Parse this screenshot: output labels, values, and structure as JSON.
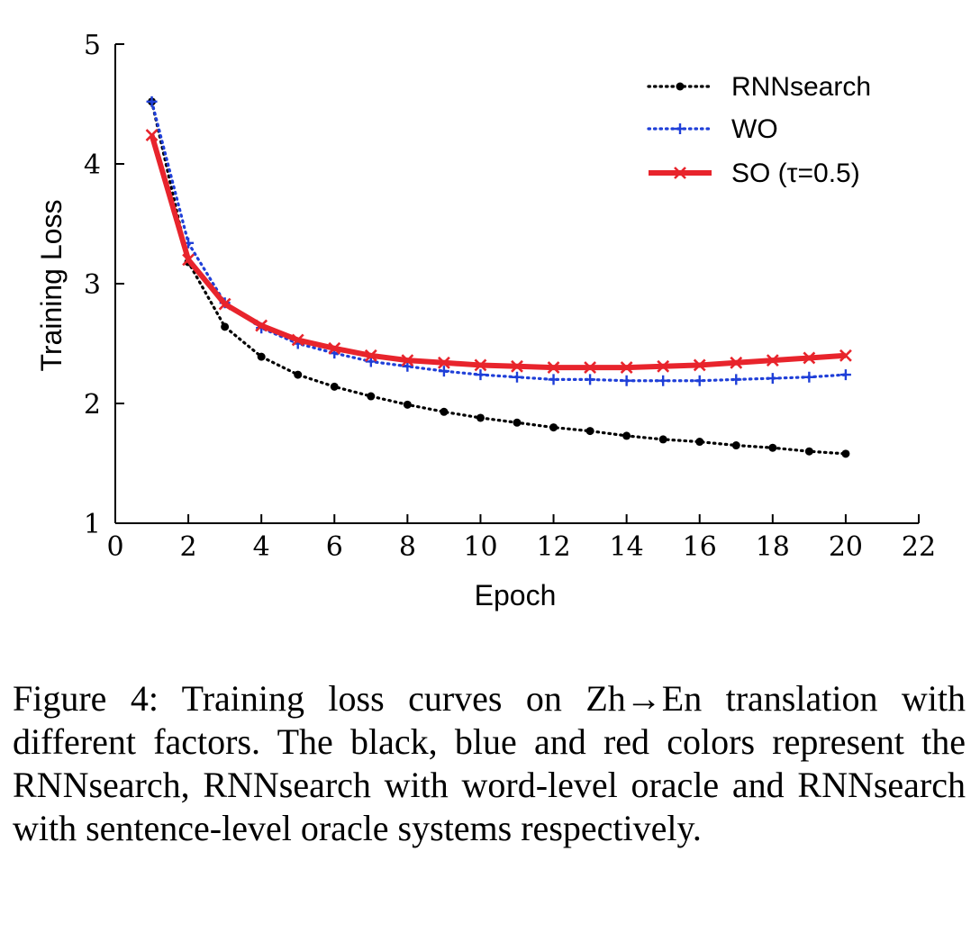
{
  "chart_data": {
    "type": "line",
    "xlabel": "Epoch",
    "ylabel": "Training Loss",
    "xlim": [
      0,
      22
    ],
    "ylim": [
      1,
      5
    ],
    "xticks": [
      0,
      2,
      4,
      6,
      8,
      10,
      12,
      14,
      16,
      18,
      20,
      22
    ],
    "yticks": [
      1,
      2,
      3,
      4,
      5
    ],
    "x": [
      1,
      2,
      3,
      4,
      5,
      6,
      7,
      8,
      9,
      10,
      11,
      12,
      13,
      14,
      15,
      16,
      17,
      18,
      19,
      20
    ],
    "legend_position": "top-right",
    "grid": false,
    "series": [
      {
        "name": "RNNsearch",
        "color": "#000000",
        "style": "dotted",
        "marker": "dot",
        "values": [
          4.52,
          3.18,
          2.64,
          2.39,
          2.24,
          2.14,
          2.06,
          1.99,
          1.93,
          1.88,
          1.84,
          1.8,
          1.77,
          1.73,
          1.7,
          1.68,
          1.65,
          1.63,
          1.6,
          1.58
        ]
      },
      {
        "name": "WO",
        "color": "#1f3fd8",
        "style": "dotted",
        "marker": "plus",
        "values": [
          4.52,
          3.34,
          2.84,
          2.63,
          2.5,
          2.42,
          2.35,
          2.31,
          2.27,
          2.24,
          2.22,
          2.2,
          2.2,
          2.19,
          2.19,
          2.19,
          2.2,
          2.21,
          2.22,
          2.24
        ]
      },
      {
        "name": "SO (τ=0.5)",
        "color": "#e8242c",
        "style": "solid",
        "marker": "x",
        "values": [
          4.24,
          3.2,
          2.83,
          2.65,
          2.53,
          2.46,
          2.4,
          2.36,
          2.34,
          2.32,
          2.31,
          2.3,
          2.3,
          2.3,
          2.31,
          2.32,
          2.34,
          2.36,
          2.38,
          2.4
        ]
      }
    ]
  },
  "caption": "Figure 4: Training loss curves on Zh→En translation with different factors. The black, blue and red colors represent the RNNsearch, RNNsearch with word-level oracle and RNNsearch with sentence-level oracle systems respectively."
}
